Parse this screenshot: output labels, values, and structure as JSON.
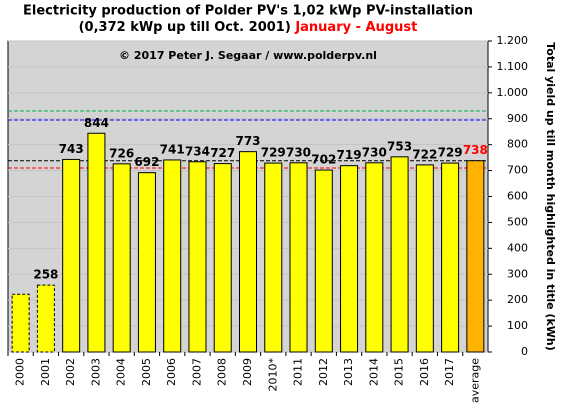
{
  "chart_data": {
    "type": "bar",
    "title": "Electricity production  of Polder PV's 1,02 kWp PV-installation",
    "subtitle": "(0,372 kWp up till Oct. 2001)",
    "subtitle_highlight": "January - August",
    "subtitle_highlight_color": "#ff0000",
    "annotation": "© 2017 Peter J. Segaar / www.polderpv.nl",
    "y_axis_label": "Total yield up till month highlighted in title (kWh)",
    "categories": [
      "2000",
      "2001",
      "2002",
      "2003",
      "2004",
      "2005",
      "2006",
      "2007",
      "2008",
      "2009",
      "2010*",
      "2011",
      "2012",
      "2013",
      "2014",
      "2015",
      "2016",
      "2017",
      "average"
    ],
    "values": [
      223,
      258,
      743,
      844,
      726,
      692,
      741,
      734,
      727,
      773,
      729,
      730,
      702,
      719,
      730,
      753,
      722,
      729,
      738
    ],
    "value_labels": [
      null,
      "258",
      "743",
      "844",
      "726",
      "692",
      "741",
      "734",
      "727",
      "773",
      "729",
      "730",
      "702",
      "719",
      "730",
      "753",
      "722",
      "729",
      "738"
    ],
    "colors": [
      "#ffff00",
      "#ffff00",
      "#ffff00",
      "#ffff00",
      "#ffff00",
      "#ffff00",
      "#ffff00",
      "#ffff00",
      "#ffff00",
      "#ffff00",
      "#ffff00",
      "#ffff00",
      "#ffff00",
      "#ffff00",
      "#ffff00",
      "#ffff00",
      "#ffff00",
      "#ffff00",
      "#ffb300"
    ],
    "value_label_colors": [
      "#000000",
      "#000000",
      "#000000",
      "#000000",
      "#000000",
      "#000000",
      "#000000",
      "#000000",
      "#000000",
      "#000000",
      "#000000",
      "#000000",
      "#000000",
      "#000000",
      "#000000",
      "#000000",
      "#000000",
      "#000000",
      "#ff0000"
    ],
    "bar_outlines": [
      "dashed",
      "dashed",
      "solid",
      "solid",
      "solid",
      "solid",
      "solid",
      "solid",
      "solid",
      "solid",
      "solid",
      "solid",
      "solid",
      "solid",
      "solid",
      "solid",
      "solid",
      "solid",
      "solid"
    ],
    "reference_lines": [
      {
        "value": 930,
        "color": "#00b050"
      },
      {
        "value": 895,
        "color": "#0000ff"
      },
      {
        "value": 738,
        "color": "#000000"
      },
      {
        "value": 710,
        "color": "#ff0000"
      }
    ],
    "ylim": [
      0,
      1200
    ],
    "yticks": [
      0,
      100,
      200,
      300,
      400,
      500,
      600,
      700,
      800,
      900,
      {
        "value": 1000,
        "label": "1.000"
      },
      {
        "value": 1100,
        "label": "1.100"
      },
      {
        "value": 1200,
        "label": "1.200"
      }
    ],
    "grid": true,
    "plot_background": "#d4d4d4"
  }
}
